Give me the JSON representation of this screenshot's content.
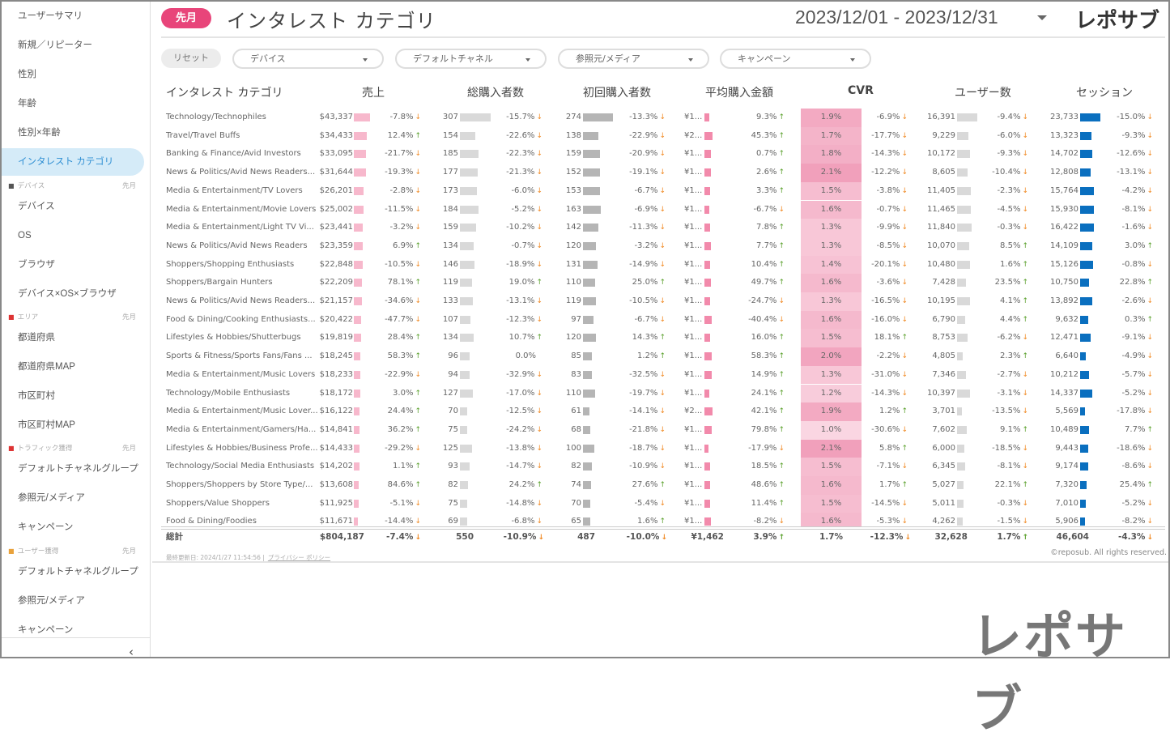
{
  "sidebar": {
    "top_items": [
      "ユーザーサマリ",
      "新規／リピーター",
      "性別",
      "年齢",
      "性別×年齢",
      "インタレスト カテゴリ"
    ],
    "active": "インタレスト カテゴリ",
    "sections": [
      {
        "title": "デバイス",
        "period": "先月",
        "icon": "laptop-icon",
        "items": [
          "デバイス",
          "OS",
          "ブラウザ",
          "デバイス×OS×ブラウザ"
        ]
      },
      {
        "title": "エリア",
        "period": "先月",
        "icon": "japan-flag-icon",
        "items": [
          "都道府県",
          "都道府県MAP",
          "市区町村",
          "市区町村MAP"
        ]
      },
      {
        "title": "トラフィック獲得",
        "period": "先月",
        "icon": "car-icon",
        "items": [
          "デフォルトチャネルグループ",
          "参照元/メディア",
          "キャンペーン"
        ]
      },
      {
        "title": "ユーザー獲得",
        "period": "先月",
        "icon": "runner-icon",
        "items": [
          "デフォルトチャネルグループ",
          "参照元/メディア",
          "キャンペーン"
        ]
      }
    ],
    "collapse": "‹"
  },
  "header": {
    "period_badge": "先月",
    "title": "インタレスト カテゴリ",
    "date_range": "2023/12/01 - 2023/12/31",
    "logo": "レポサブ"
  },
  "filters": {
    "reset": "リセット",
    "items": [
      "デバイス",
      "デフォルトチャネル",
      "参照元/メディア",
      "キャンペーン"
    ]
  },
  "table": {
    "headers": [
      "インタレスト カテゴリ",
      "売上",
      "総購入者数",
      "初回購入者数",
      "平均購入金額",
      "CVR",
      "ユーザー数",
      "セッション"
    ],
    "rows": [
      [
        "Technology/Technophiles",
        "$43,337",
        "-7.8%",
        "307",
        "-15.7%",
        "274",
        "-13.3%",
        "¥1...",
        "9.3%",
        "1.9%",
        "-6.9%",
        "16,391",
        "-9.4%",
        "23,733",
        "-15.0%"
      ],
      [
        "Travel/Travel Buffs",
        "$34,433",
        "12.4%",
        "154",
        "-22.6%",
        "138",
        "-22.9%",
        "¥2...",
        "45.3%",
        "1.7%",
        "-17.7%",
        "9,229",
        "-6.0%",
        "13,323",
        "-9.3%"
      ],
      [
        "Banking & Finance/Avid Investors",
        "$33,095",
        "-21.7%",
        "185",
        "-22.3%",
        "159",
        "-20.9%",
        "¥1...",
        "0.7%",
        "1.8%",
        "-14.3%",
        "10,172",
        "-9.3%",
        "14,702",
        "-12.6%"
      ],
      [
        "News & Politics/Avid News Readers...",
        "$31,644",
        "-19.3%",
        "177",
        "-21.3%",
        "152",
        "-19.1%",
        "¥1...",
        "2.6%",
        "2.1%",
        "-12.2%",
        "8,605",
        "-10.4%",
        "12,808",
        "-13.1%"
      ],
      [
        "Media & Entertainment/TV Lovers",
        "$26,201",
        "-2.8%",
        "173",
        "-6.0%",
        "153",
        "-6.7%",
        "¥1...",
        "3.3%",
        "1.5%",
        "-3.8%",
        "11,405",
        "-2.3%",
        "15,764",
        "-4.2%"
      ],
      [
        "Media & Entertainment/Movie Lovers",
        "$25,002",
        "-11.5%",
        "184",
        "-5.2%",
        "163",
        "-6.9%",
        "¥1...",
        "-6.7%",
        "1.6%",
        "-0.7%",
        "11,465",
        "-4.5%",
        "15,930",
        "-8.1%"
      ],
      [
        "Media & Entertainment/Light TV Vi...",
        "$23,441",
        "-3.2%",
        "159",
        "-10.2%",
        "142",
        "-11.3%",
        "¥1...",
        "7.8%",
        "1.3%",
        "-9.9%",
        "11,840",
        "-0.3%",
        "16,422",
        "-1.6%"
      ],
      [
        "News & Politics/Avid News Readers",
        "$23,359",
        "6.9%",
        "134",
        "-0.7%",
        "120",
        "-3.2%",
        "¥1...",
        "7.7%",
        "1.3%",
        "-8.5%",
        "10,070",
        "8.5%",
        "14,109",
        "3.0%"
      ],
      [
        "Shoppers/Shopping Enthusiasts",
        "$22,848",
        "-10.5%",
        "146",
        "-18.9%",
        "131",
        "-14.9%",
        "¥1...",
        "10.4%",
        "1.4%",
        "-20.1%",
        "10,480",
        "1.6%",
        "15,126",
        "-0.8%"
      ],
      [
        "Shoppers/Bargain Hunters",
        "$22,209",
        "78.1%",
        "119",
        "19.0%",
        "110",
        "25.0%",
        "¥1...",
        "49.7%",
        "1.6%",
        "-3.6%",
        "7,428",
        "23.5%",
        "10,750",
        "22.8%"
      ],
      [
        "News & Politics/Avid News Readers...",
        "$21,157",
        "-34.6%",
        "133",
        "-13.1%",
        "119",
        "-10.5%",
        "¥1...",
        "-24.7%",
        "1.3%",
        "-16.5%",
        "10,195",
        "4.1%",
        "13,892",
        "-2.6%"
      ],
      [
        "Food & Dining/Cooking Enthusiasts...",
        "$20,422",
        "-47.7%",
        "107",
        "-12.3%",
        "97",
        "-6.7%",
        "¥1...",
        "-40.4%",
        "1.6%",
        "-16.0%",
        "6,790",
        "4.4%",
        "9,632",
        "0.3%"
      ],
      [
        "Lifestyles & Hobbies/Shutterbugs",
        "$19,819",
        "28.4%",
        "134",
        "10.7%",
        "120",
        "14.3%",
        "¥1...",
        "16.0%",
        "1.5%",
        "18.1%",
        "8,753",
        "-6.2%",
        "12,471",
        "-9.1%"
      ],
      [
        "Sports & Fitness/Sports Fans/Fans ...",
        "$18,245",
        "58.3%",
        "96",
        "0.0%",
        "85",
        "1.2%",
        "¥1...",
        "58.3%",
        "2.0%",
        "-2.2%",
        "4,805",
        "2.3%",
        "6,640",
        "-4.9%"
      ],
      [
        "Media & Entertainment/Music Lovers",
        "$18,233",
        "-22.9%",
        "94",
        "-32.9%",
        "83",
        "-32.5%",
        "¥1...",
        "14.9%",
        "1.3%",
        "-31.0%",
        "7,346",
        "-2.7%",
        "10,212",
        "-5.7%"
      ],
      [
        "Technology/Mobile Enthusiasts",
        "$18,172",
        "3.0%",
        "127",
        "-17.0%",
        "110",
        "-19.7%",
        "¥1...",
        "24.1%",
        "1.2%",
        "-14.3%",
        "10,397",
        "-3.1%",
        "14,337",
        "-5.2%"
      ],
      [
        "Media & Entertainment/Music Lover...",
        "$16,122",
        "24.4%",
        "70",
        "-12.5%",
        "61",
        "-14.1%",
        "¥2...",
        "42.1%",
        "1.9%",
        "1.2%",
        "3,701",
        "-13.5%",
        "5,569",
        "-17.8%"
      ],
      [
        "Media & Entertainment/Gamers/Ha...",
        "$14,841",
        "36.2%",
        "75",
        "-24.2%",
        "68",
        "-21.8%",
        "¥1...",
        "79.8%",
        "1.0%",
        "-30.6%",
        "7,602",
        "9.1%",
        "10,489",
        "7.7%"
      ],
      [
        "Lifestyles & Hobbies/Business Profe...",
        "$14,433",
        "-29.2%",
        "125",
        "-13.8%",
        "100",
        "-18.7%",
        "¥1...",
        "-17.9%",
        "2.1%",
        "5.8%",
        "6,000",
        "-18.5%",
        "9,443",
        "-18.6%"
      ],
      [
        "Technology/Social Media Enthusiasts",
        "$14,202",
        "1.1%",
        "93",
        "-14.7%",
        "82",
        "-10.9%",
        "¥1...",
        "18.5%",
        "1.5%",
        "-7.1%",
        "6,345",
        "-8.1%",
        "9,174",
        "-8.6%"
      ],
      [
        "Shoppers/Shoppers by Store Type/...",
        "$13,608",
        "84.6%",
        "82",
        "24.2%",
        "74",
        "27.6%",
        "¥1...",
        "48.6%",
        "1.6%",
        "1.7%",
        "5,027",
        "22.1%",
        "7,320",
        "25.4%"
      ],
      [
        "Shoppers/Value Shoppers",
        "$11,925",
        "-5.1%",
        "75",
        "-14.8%",
        "70",
        "-5.4%",
        "¥1...",
        "11.4%",
        "1.5%",
        "-14.5%",
        "5,011",
        "-0.3%",
        "7,010",
        "-5.2%"
      ],
      [
        "Food & Dining/Foodies",
        "$11,671",
        "-14.4%",
        "69",
        "-6.8%",
        "65",
        "1.6%",
        "¥1...",
        "-8.2%",
        "1.6%",
        "-5.3%",
        "4,262",
        "-1.5%",
        "5,906",
        "-8.2%"
      ]
    ],
    "total": [
      "総計",
      "$804,187",
      "-7.4%",
      "550",
      "-10.9%",
      "487",
      "-10.0%",
      "¥1,462",
      "3.9%",
      "1.7%",
      "-12.3%",
      "32,628",
      "1.7%",
      "46,604",
      "-4.3%"
    ]
  },
  "footer": {
    "updated": "最終更新日: 2024/1/27 11:54:56",
    "separator": "|",
    "privacy": "プライバシー ポリシー",
    "copyright": "©reposub. All rights reserved."
  },
  "watermark": "レポサブ",
  "colors": {
    "accent": "#e8457a",
    "up": "#5aa02c",
    "down": "#f08a24",
    "sales_bar": "#f7b8cc",
    "count_bar": "#d9d9d9",
    "first_bar": "#b5b5b5",
    "avg_bar": "#f28aab",
    "session_bar": "#0a6fbf",
    "active_bg": "#d5ebf8"
  }
}
